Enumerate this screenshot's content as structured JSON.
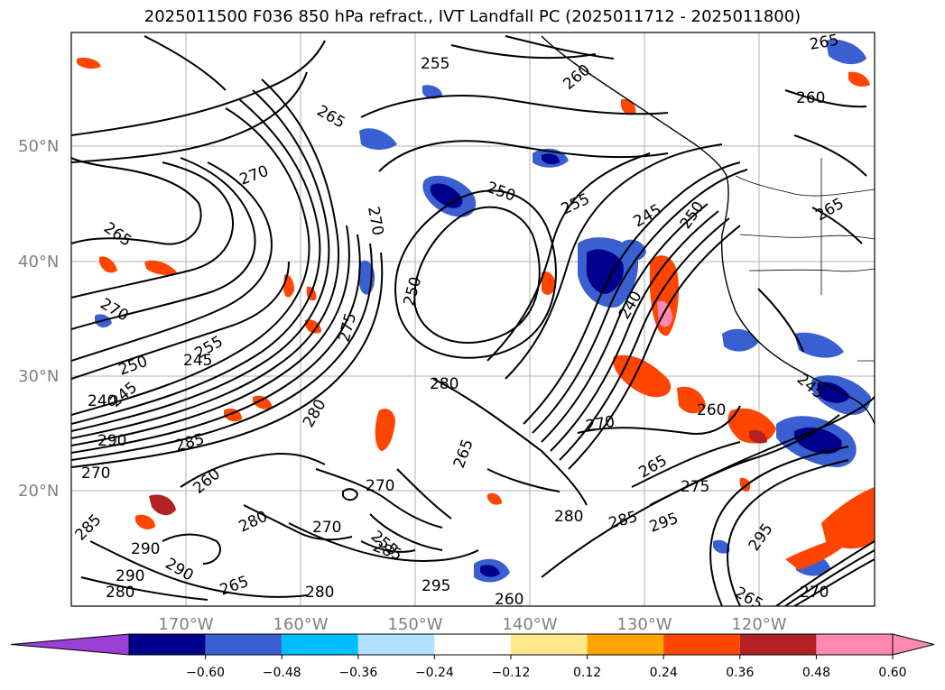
{
  "title": "2025011500 F036 850 hPa refract., IVT Landfall PC (2025011712 - 2025011800)",
  "axes": {
    "lat_labels": [
      "50°N",
      "40°N",
      "30°N",
      "20°N"
    ],
    "lon_labels": [
      "170°W",
      "160°W",
      "150°W",
      "140°W",
      "130°W",
      "120°W"
    ]
  },
  "colorbar": {
    "ticks": [
      "−0.60",
      "−0.48",
      "−0.36",
      "−0.24",
      "−0.12",
      "0.12",
      "0.24",
      "0.36",
      "0.48",
      "0.60"
    ],
    "colors": [
      "#9b3fd6",
      "#00008c",
      "#3a5fd0",
      "#00bfff",
      "#b0e2ff",
      "#ffffff",
      "#ffe88a",
      "#ffa500",
      "#ff4500",
      "#b22222",
      "#ff88b0",
      "#ff88b0"
    ]
  },
  "contour_labels": [
    {
      "text": "255"
    },
    {
      "text": "260"
    },
    {
      "text": "265"
    },
    {
      "text": "260"
    },
    {
      "text": "265"
    },
    {
      "text": "270"
    },
    {
      "text": "250"
    },
    {
      "text": "265"
    },
    {
      "text": "270"
    },
    {
      "text": "255"
    },
    {
      "text": "245"
    },
    {
      "text": "250"
    },
    {
      "text": "265"
    },
    {
      "text": "270"
    },
    {
      "text": "250"
    },
    {
      "text": "240"
    },
    {
      "text": "255"
    },
    {
      "text": "245"
    },
    {
      "text": "250"
    },
    {
      "text": "240"
    },
    {
      "text": "245"
    },
    {
      "text": "290"
    },
    {
      "text": "285"
    },
    {
      "text": "270"
    },
    {
      "text": "280"
    },
    {
      "text": "280"
    },
    {
      "text": "270"
    },
    {
      "text": "265"
    },
    {
      "text": "260"
    },
    {
      "text": "245"
    },
    {
      "text": "265"
    },
    {
      "text": "275"
    },
    {
      "text": "280"
    },
    {
      "text": "285"
    },
    {
      "text": "295"
    },
    {
      "text": "260"
    },
    {
      "text": "270"
    },
    {
      "text": "280"
    },
    {
      "text": "270"
    },
    {
      "text": "285"
    },
    {
      "text": "290"
    },
    {
      "text": "290"
    },
    {
      "text": "280"
    },
    {
      "text": "290"
    },
    {
      "text": "265"
    },
    {
      "text": "280"
    },
    {
      "text": "285"
    },
    {
      "text": "295"
    },
    {
      "text": "260"
    },
    {
      "text": "265"
    },
    {
      "text": "295"
    },
    {
      "text": "270"
    },
    {
      "text": "275"
    },
    {
      "text": "255"
    }
  ]
}
